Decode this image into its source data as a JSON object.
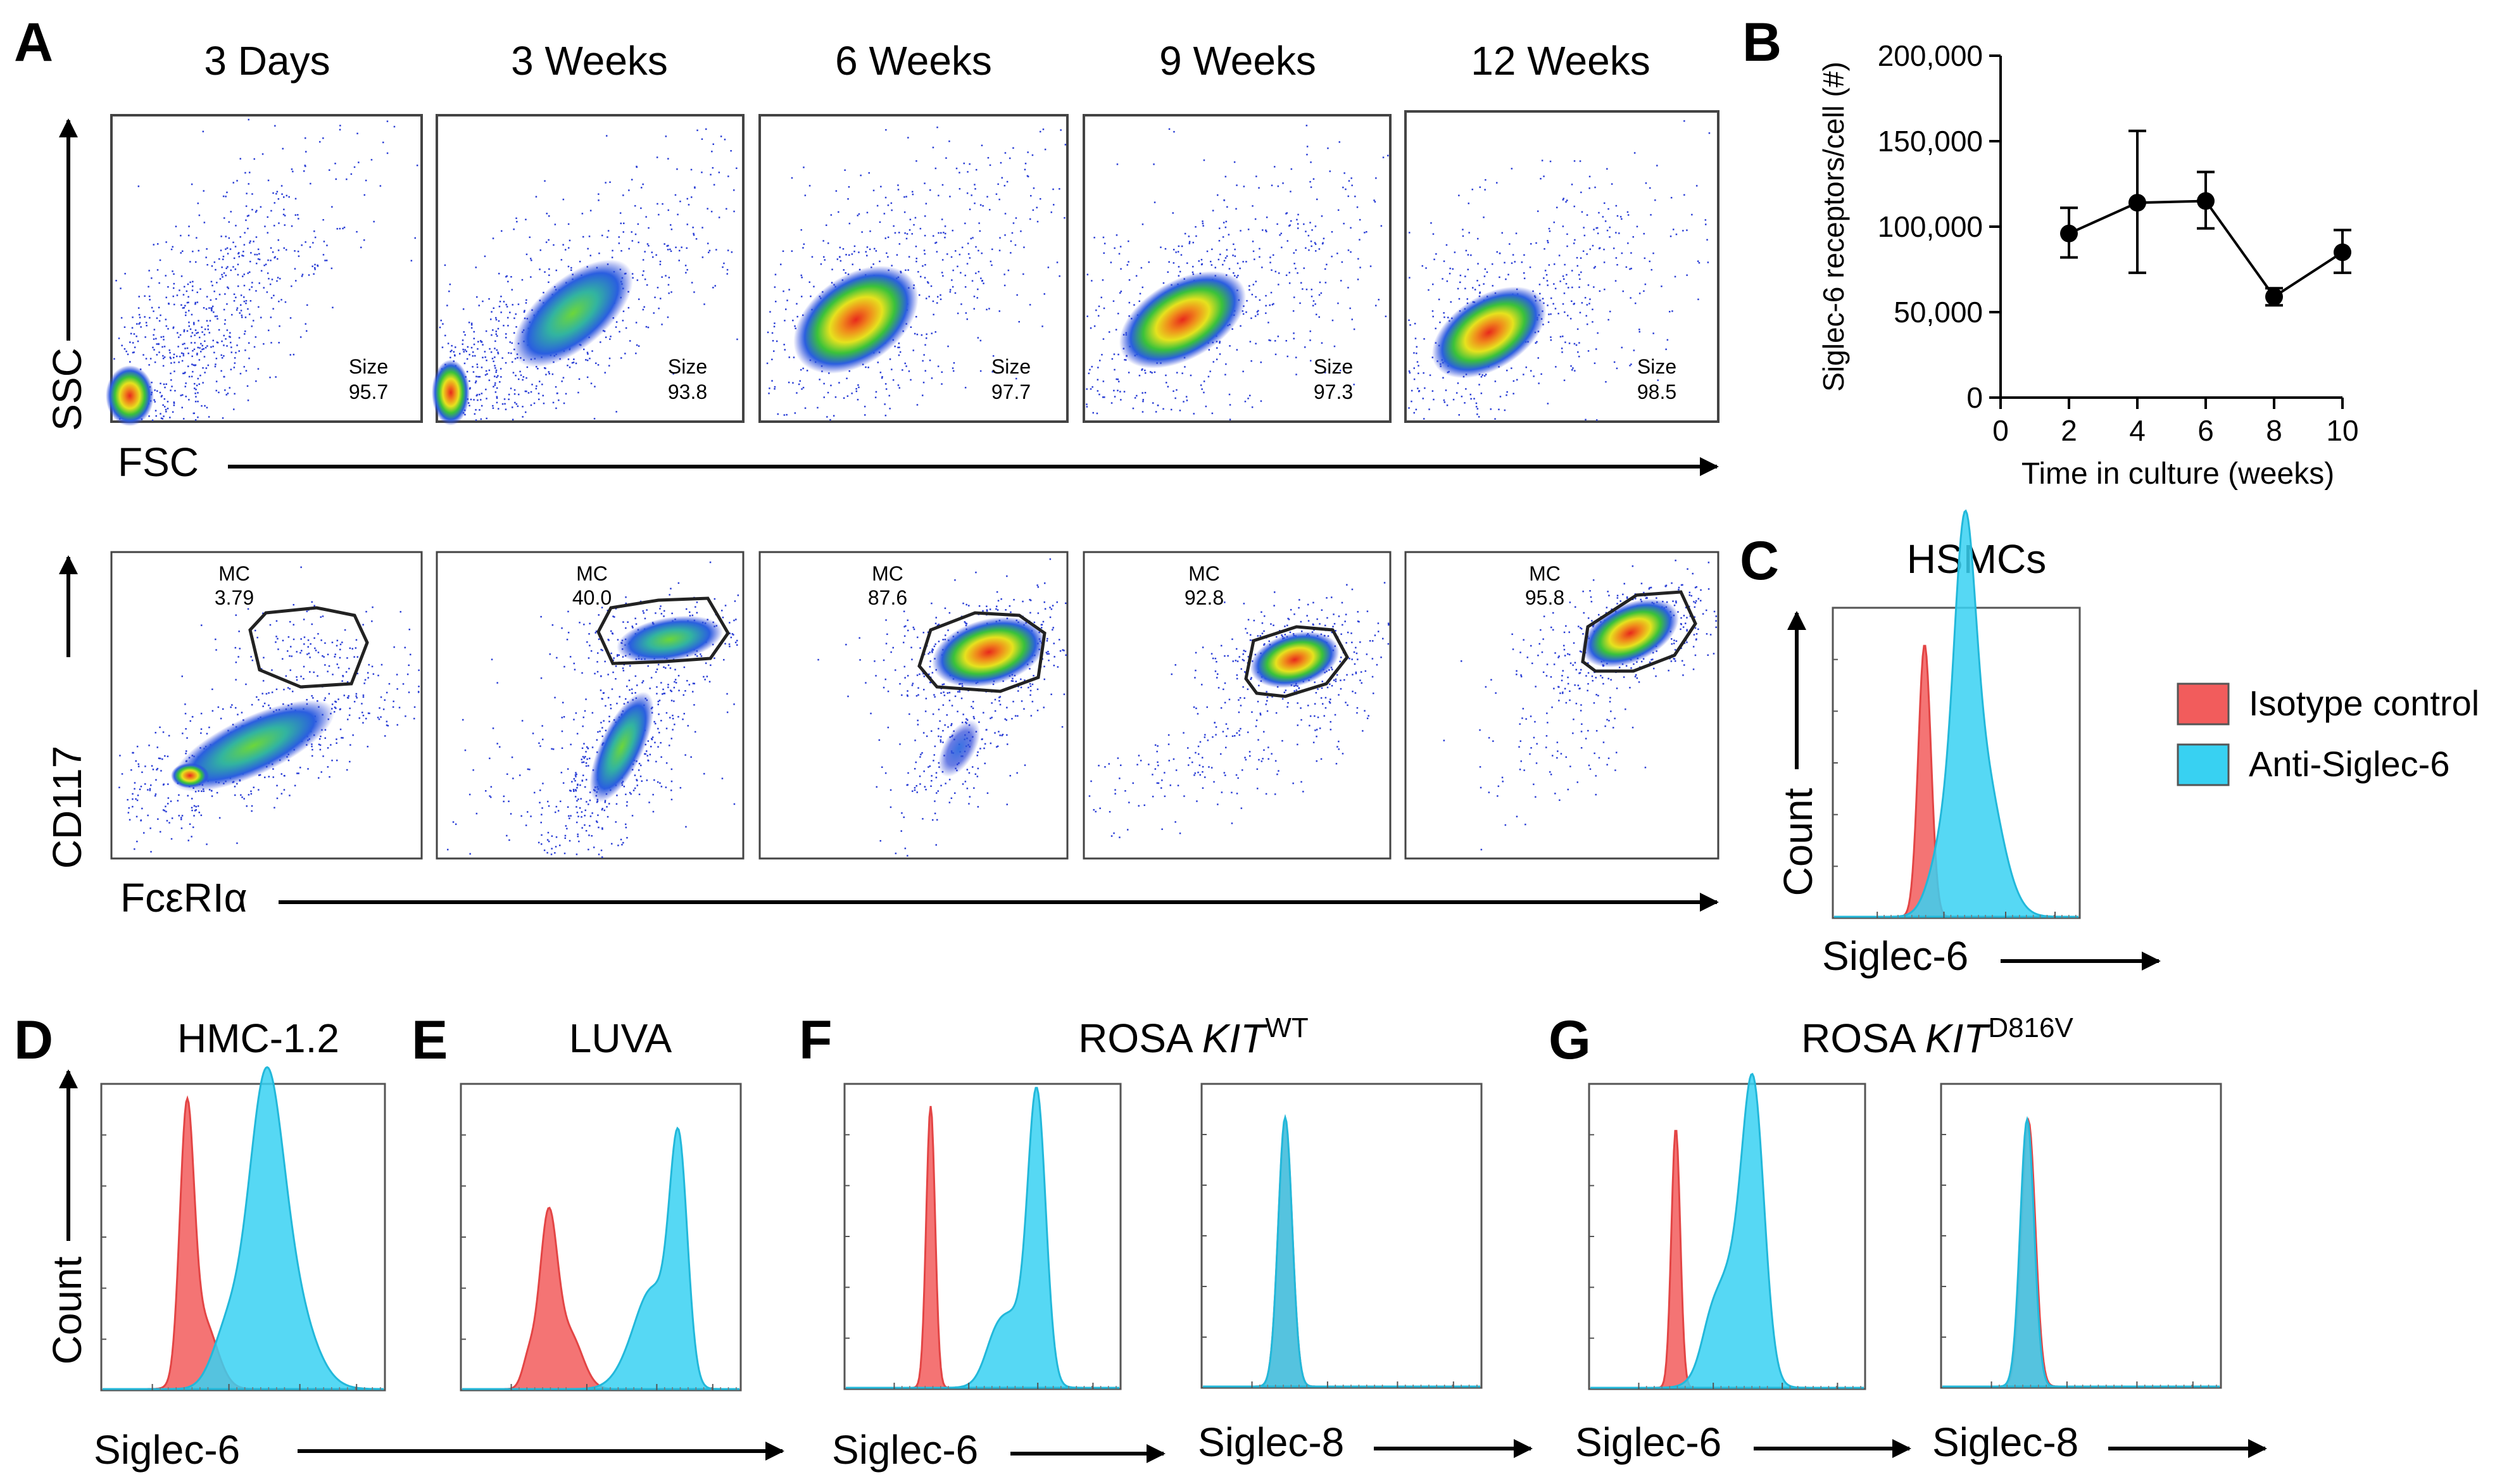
{
  "panels": {
    "A": {
      "letter": "A",
      "timepoints": [
        "3 Days",
        "3 Weeks",
        "6 Weeks",
        "9 Weeks",
        "12 Weeks"
      ],
      "scatter_x_label": "FSC",
      "scatter_y_label": "SSC",
      "gate_x_label": "FcεRIα",
      "gate_y_label": "CD117",
      "size_label": "Size",
      "size_values": [
        "95.7",
        "93.8",
        "97.7",
        "97.3",
        "98.5"
      ],
      "mc_label": "MC",
      "mc_values": [
        "3.79",
        "40.0",
        "87.6",
        "92.8",
        "95.8"
      ]
    },
    "B": {
      "letter": "B"
    },
    "C": {
      "letter": "C",
      "title": "HSMCs",
      "xlabel": "Siglec-6",
      "ylabel": "Count"
    },
    "D": {
      "letter": "D",
      "title": "HMC-1.2",
      "xlabel": "Siglec-6",
      "ylabel": "Count"
    },
    "E": {
      "letter": "E",
      "title": "LUVA"
    },
    "F": {
      "letter": "F",
      "title_main": "ROSA ",
      "title_gene": "KIT",
      "title_sup": "WT",
      "xlabel_1": "Siglec-6",
      "xlabel_2": "Siglec-8"
    },
    "G": {
      "letter": "G",
      "title_main": "ROSA ",
      "title_gene": "KIT",
      "title_sup": "D816V",
      "xlabel_1": "Siglec-6",
      "xlabel_2": "Siglec-8"
    }
  },
  "legend": {
    "items": [
      {
        "label": "Isotype control",
        "color": "#f25c5c"
      },
      {
        "label": "Anti-Siglec-6",
        "color": "#38d1f2"
      }
    ]
  },
  "chart_data": {
    "type": "line",
    "title": "",
    "xlabel": "Time in culture (weeks)",
    "ylabel": "Siglec-6 receptors/cell (#)",
    "x": [
      2,
      4,
      6,
      8,
      10
    ],
    "y": [
      96000,
      114000,
      115000,
      59000,
      85000
    ],
    "error": [
      [
        82000,
        111000
      ],
      [
        73000,
        156000
      ],
      [
        99000,
        132000
      ],
      [
        54000,
        64000
      ],
      [
        73000,
        98000
      ]
    ],
    "xlim": [
      0,
      10
    ],
    "ylim": [
      0,
      200000
    ],
    "xticks": [
      0,
      2,
      4,
      6,
      8,
      10
    ],
    "xtick_labels": [
      "0",
      "2",
      "4",
      "6",
      "8",
      "10"
    ],
    "yticks": [
      0,
      50000,
      100000,
      150000,
      200000
    ],
    "ytick_labels": [
      "0",
      "50,000",
      "100,000",
      "150,000",
      "200,000"
    ]
  }
}
